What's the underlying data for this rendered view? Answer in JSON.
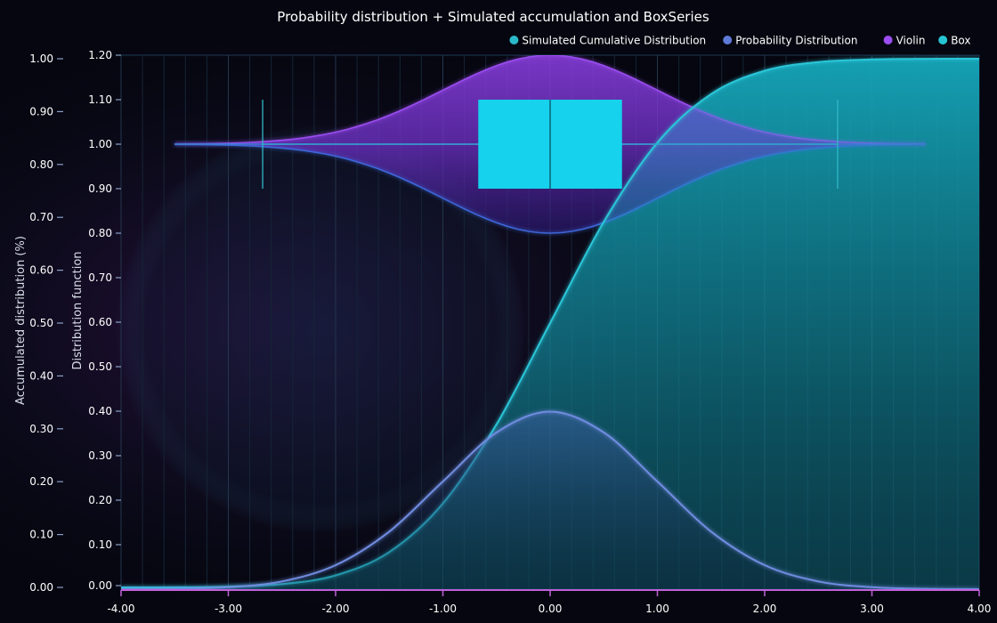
{
  "chart_data": {
    "type": "line",
    "title": "Probability distribution + Simulated accumulation and BoxSeries",
    "legend": {
      "placement": "top-right",
      "items": [
        {
          "label": "Simulated Cumulative Distribution",
          "color": "#2bb8c9"
        },
        {
          "label": "Probability Distribution",
          "color": "#5e7ad6"
        },
        {
          "label": "Violin",
          "color": "#9b4df0"
        },
        {
          "label": "Box",
          "color": "#27c4d4"
        }
      ]
    },
    "x_axis": {
      "range": [
        -4.0,
        4.0
      ],
      "ticks": [
        "-4.00",
        "-3.00",
        "-2.00",
        "-1.00",
        "0.00",
        "1.00",
        "2.00",
        "3.00",
        "4.00"
      ]
    },
    "y_axis_left": {
      "label": "Accumulated distribution (%)",
      "range": [
        0,
        1.0
      ],
      "ticks": [
        "0.00",
        "0.10",
        "0.20",
        "0.30",
        "0.40",
        "0.50",
        "0.60",
        "0.70",
        "0.80",
        "0.90",
        "1.00"
      ]
    },
    "y_axis_right": {
      "label": "Distribution function",
      "range": [
        0,
        1.2
      ],
      "ticks": [
        "0.00",
        "0.10",
        "0.20",
        "0.30",
        "0.40",
        "0.50",
        "0.60",
        "0.70",
        "0.80",
        "0.90",
        "1.00",
        "1.10",
        "1.20"
      ]
    },
    "series": [
      {
        "name": "Probability Distribution",
        "kind": "normal-pdf",
        "axis": "Distribution function",
        "x": [
          -4.0,
          -3.5,
          -3.0,
          -2.5,
          -2.0,
          -1.5,
          -1.0,
          -0.5,
          0.0,
          0.5,
          1.0,
          1.5,
          2.0,
          2.5,
          3.0,
          3.5,
          4.0
        ],
        "y": [
          0.0001,
          0.0009,
          0.0044,
          0.0175,
          0.054,
          0.1295,
          0.242,
          0.3521,
          0.399,
          0.3521,
          0.242,
          0.1295,
          0.054,
          0.0175,
          0.0044,
          0.0009,
          0.0001
        ]
      },
      {
        "name": "Simulated Cumulative Distribution",
        "kind": "normal-cdf",
        "axis": "Accumulated distribution (%)",
        "x": [
          -4.0,
          -3.5,
          -3.0,
          -2.5,
          -2.0,
          -1.5,
          -1.0,
          -0.5,
          0.0,
          0.5,
          1.0,
          1.5,
          2.0,
          2.5,
          3.0,
          3.5,
          4.0
        ],
        "y": [
          0.0,
          0.0002,
          0.0013,
          0.0062,
          0.0228,
          0.0668,
          0.1587,
          0.3085,
          0.5,
          0.6915,
          0.8413,
          0.9332,
          0.9772,
          0.9938,
          0.9987,
          0.9998,
          1.0
        ]
      },
      {
        "name": "Violin",
        "axis": "Distribution function",
        "center": 1.0,
        "x_range": [
          -3.5,
          3.5
        ],
        "upper_peak": 1.2,
        "lower_trough": 0.8
      },
      {
        "name": "Box",
        "axis": "Distribution function",
        "y_range": [
          0.9,
          1.1
        ],
        "lower_extreme": -2.68,
        "q1": -0.67,
        "median": 0.0,
        "q3": 0.67,
        "upper_extreme": 2.68
      }
    ],
    "grid": true
  }
}
